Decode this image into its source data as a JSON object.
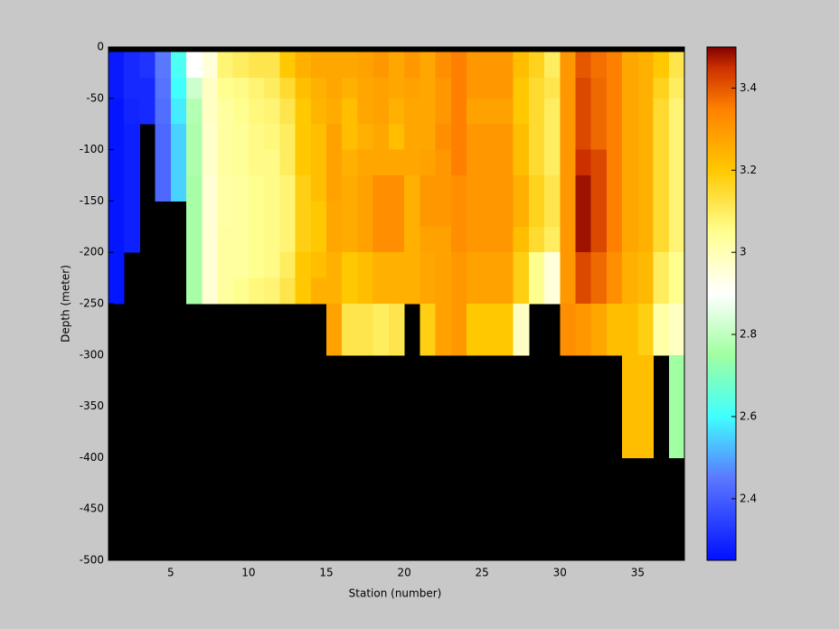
{
  "chart_data": {
    "type": "heatmap",
    "xlabel": "Station (number)",
    "ylabel": "Depth (meter)",
    "xlim": [
      1,
      38
    ],
    "ylim": [
      -500,
      0
    ],
    "xticks": [
      5,
      10,
      15,
      20,
      25,
      30,
      35
    ],
    "yticks": [
      0,
      -50,
      -100,
      -150,
      -200,
      -250,
      -300,
      -350,
      -400,
      -450,
      -500
    ],
    "x_edges": [
      1,
      2,
      3,
      4,
      5,
      6,
      7,
      8,
      9,
      10,
      11,
      12,
      13,
      14,
      15,
      16,
      17,
      18,
      19,
      20,
      21,
      22,
      23,
      24,
      25,
      26,
      27,
      28,
      29,
      30,
      31,
      32,
      33,
      34,
      35,
      36,
      37,
      38
    ],
    "depth_edges": [
      -5,
      -30,
      -50,
      -75,
      -100,
      -125,
      -150,
      -175,
      -200,
      -225,
      -250,
      -275,
      -300,
      -325,
      -350,
      -375,
      -400
    ],
    "z": [
      [
        2.27,
        2.27,
        2.26,
        2.26,
        2.26,
        2.26,
        2.26,
        2.26,
        2.26,
        2.26
      ],
      [
        2.3,
        2.3,
        2.29,
        2.28,
        2.28,
        2.28,
        2.28,
        2.28
      ],
      [
        2.32,
        2.3,
        2.3
      ],
      [
        2.45,
        2.44,
        2.43,
        2.42,
        2.42,
        2.42
      ],
      [
        2.62,
        2.6,
        2.58,
        2.55,
        2.55,
        2.55
      ],
      [
        2.9,
        2.82,
        2.78,
        2.77,
        2.77,
        2.76,
        2.76,
        2.76,
        2.76,
        2.76
      ],
      [
        2.95,
        2.98,
        2.98,
        2.97,
        2.97,
        2.96,
        2.96,
        2.96,
        2.96,
        2.96
      ],
      [
        3.08,
        3.05,
        3.03,
        3.03,
        3.03,
        3.02,
        3.02,
        3.03,
        3.03,
        3.03
      ],
      [
        3.1,
        3.06,
        3.05,
        3.04,
        3.04,
        3.03,
        3.03,
        3.03,
        3.03,
        3.05
      ],
      [
        3.12,
        3.08,
        3.07,
        3.06,
        3.06,
        3.05,
        3.05,
        3.05,
        3.05,
        3.07
      ],
      [
        3.12,
        3.1,
        3.08,
        3.07,
        3.06,
        3.06,
        3.06,
        3.06,
        3.06,
        3.08
      ],
      [
        3.2,
        3.15,
        3.12,
        3.1,
        3.1,
        3.08,
        3.08,
        3.08,
        3.1,
        3.12
      ],
      [
        3.25,
        3.22,
        3.2,
        3.2,
        3.2,
        3.18,
        3.18,
        3.18,
        3.2,
        3.2
      ],
      [
        3.27,
        3.25,
        3.24,
        3.22,
        3.22,
        3.22,
        3.2,
        3.2,
        3.22,
        3.25
      ],
      [
        3.27,
        3.27,
        3.26,
        3.28,
        3.28,
        3.28,
        3.27,
        3.27,
        3.25,
        3.25,
        3.28,
        3.28
      ],
      [
        3.27,
        3.25,
        3.22,
        3.22,
        3.25,
        3.26,
        3.26,
        3.26,
        3.2,
        3.2,
        3.12,
        3.12
      ],
      [
        3.28,
        3.27,
        3.27,
        3.25,
        3.27,
        3.28,
        3.28,
        3.28,
        3.22,
        3.22,
        3.12,
        3.12
      ],
      [
        3.3,
        3.28,
        3.28,
        3.27,
        3.27,
        3.32,
        3.32,
        3.32,
        3.25,
        3.25,
        3.1,
        3.1
      ],
      [
        3.27,
        3.27,
        3.25,
        3.22,
        3.27,
        3.32,
        3.32,
        3.32,
        3.25,
        3.25,
        3.12,
        3.12
      ],
      [
        3.3,
        3.28,
        3.27,
        3.27,
        3.27,
        3.25,
        3.25,
        3.25,
        3.25,
        3.25
      ],
      [
        3.27,
        3.27,
        3.27,
        3.27,
        3.28,
        3.3,
        3.3,
        3.28,
        3.27,
        3.27,
        3.18,
        3.18
      ],
      [
        3.32,
        3.3,
        3.3,
        3.32,
        3.3,
        3.3,
        3.3,
        3.28,
        3.28,
        3.28,
        3.28,
        3.28
      ],
      [
        3.35,
        3.35,
        3.35,
        3.35,
        3.35,
        3.32,
        3.32,
        3.32,
        3.3,
        3.3,
        3.3,
        3.3
      ],
      [
        3.3,
        3.3,
        3.28,
        3.3,
        3.3,
        3.3,
        3.3,
        3.3,
        3.28,
        3.28,
        3.2,
        3.2
      ],
      [
        3.3,
        3.3,
        3.28,
        3.3,
        3.3,
        3.3,
        3.3,
        3.3,
        3.28,
        3.28,
        3.2,
        3.2
      ],
      [
        3.3,
        3.3,
        3.28,
        3.3,
        3.3,
        3.3,
        3.3,
        3.3,
        3.28,
        3.28,
        3.2,
        3.2
      ],
      [
        3.22,
        3.2,
        3.2,
        3.22,
        3.22,
        3.25,
        3.25,
        3.22,
        3.18,
        3.18,
        2.98,
        2.98
      ],
      [
        3.17,
        3.15,
        3.15,
        3.15,
        3.15,
        3.17,
        3.17,
        3.15,
        3.05,
        3.05
      ],
      [
        3.1,
        3.12,
        3.1,
        3.1,
        3.1,
        3.12,
        3.12,
        3.1,
        2.95,
        2.95
      ],
      [
        3.3,
        3.3,
        3.3,
        3.3,
        3.3,
        3.3,
        3.3,
        3.3,
        3.3,
        3.3,
        3.32,
        3.32
      ],
      [
        3.4,
        3.42,
        3.42,
        3.42,
        3.45,
        3.48,
        3.48,
        3.48,
        3.42,
        3.42,
        3.3,
        3.3
      ],
      [
        3.37,
        3.38,
        3.38,
        3.38,
        3.42,
        3.42,
        3.42,
        3.42,
        3.38,
        3.38,
        3.27,
        3.27
      ],
      [
        3.35,
        3.35,
        3.35,
        3.35,
        3.35,
        3.35,
        3.35,
        3.35,
        3.32,
        3.32,
        3.22,
        3.22
      ],
      [
        3.27,
        3.27,
        3.27,
        3.27,
        3.27,
        3.27,
        3.27,
        3.27,
        3.25,
        3.25,
        3.22,
        3.22,
        3.22,
        3.22,
        3.22,
        3.22
      ],
      [
        3.25,
        3.25,
        3.25,
        3.25,
        3.25,
        3.25,
        3.25,
        3.25,
        3.23,
        3.23,
        3.18,
        3.18,
        3.22,
        3.22,
        3.22,
        3.22
      ],
      [
        3.2,
        3.17,
        3.15,
        3.15,
        3.15,
        3.15,
        3.15,
        3.15,
        3.1,
        3.1,
        3.02,
        3.02
      ],
      [
        3.12,
        3.1,
        3.08,
        3.08,
        3.08,
        3.08,
        3.08,
        3.08,
        3.05,
        3.05,
        2.98,
        2.98,
        2.75,
        2.75,
        2.75,
        2.75
      ]
    ],
    "clim": [
      2.25,
      3.5
    ],
    "cticks": [
      2.4,
      2.6,
      2.8,
      3,
      3.2,
      3.4
    ],
    "colormap": [
      {
        "value": 2.25,
        "color": "#0010ff"
      },
      {
        "value": 2.45,
        "color": "#5a78ff"
      },
      {
        "value": 2.6,
        "color": "#40ffff"
      },
      {
        "value": 2.75,
        "color": "#a0ffa0"
      },
      {
        "value": 2.9,
        "color": "#ffffff"
      },
      {
        "value": 3.05,
        "color": "#ffff90"
      },
      {
        "value": 3.2,
        "color": "#ffc800"
      },
      {
        "value": 3.35,
        "color": "#ff8000"
      },
      {
        "value": 3.45,
        "color": "#cc3000"
      },
      {
        "value": 3.5,
        "color": "#800000"
      }
    ]
  }
}
